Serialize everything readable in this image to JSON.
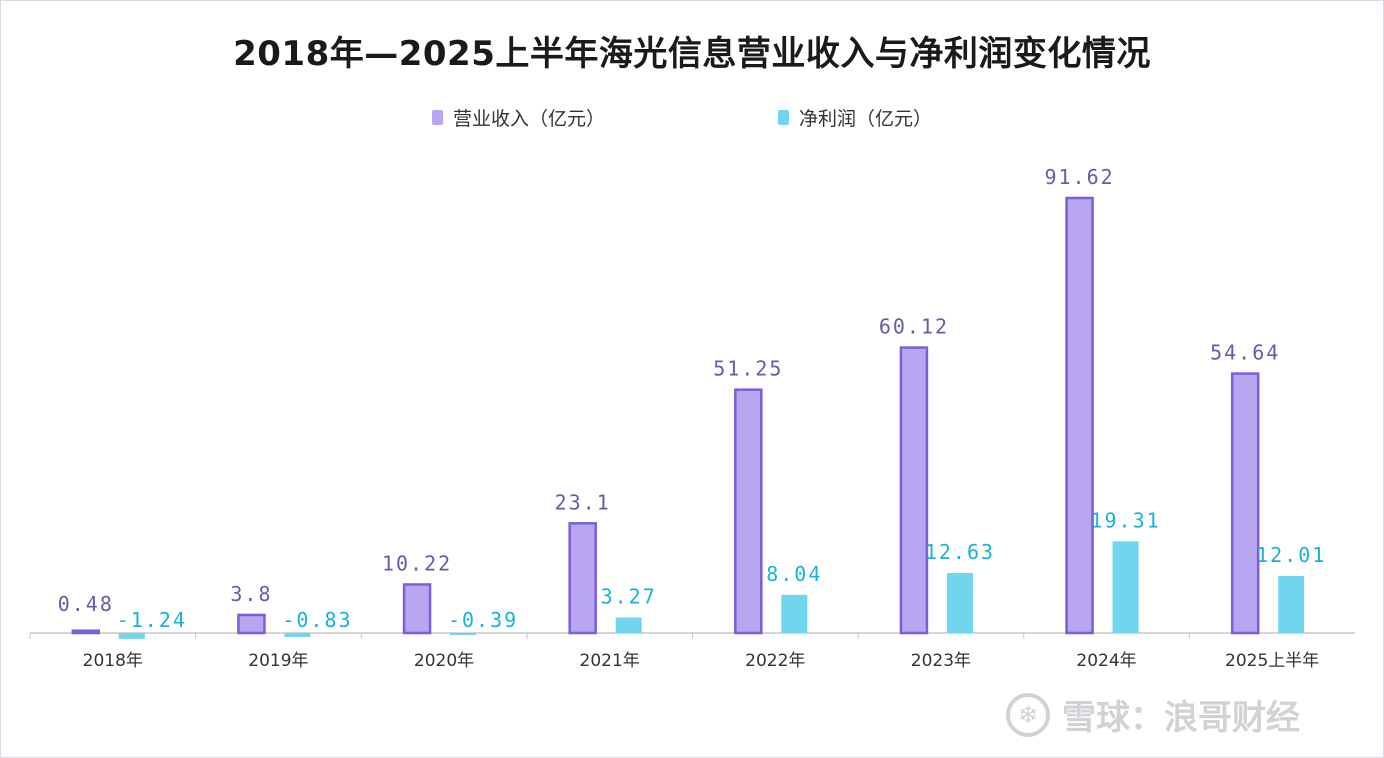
{
  "chart_data": {
    "type": "bar",
    "title": "2018年—2025上半年海光信息营业收入与净利润变化情况",
    "categories": [
      "2018年",
      "2019年",
      "2020年",
      "2021年",
      "2022年",
      "2023年",
      "2024年",
      "2025上半年"
    ],
    "series": [
      {
        "name": "营业收入（亿元）",
        "color": "#b9a6f0",
        "values": [
          0.48,
          3.8,
          10.22,
          23.1,
          51.25,
          60.12,
          91.62,
          54.64
        ],
        "labels": [
          "0.48",
          "3.8",
          "10.22",
          "23.1",
          "51.25",
          "60.12",
          "91.62",
          "54.64"
        ],
        "label_color": "#6a5aa8"
      },
      {
        "name": "净利润（亿元）",
        "color": "#6fd6ee",
        "values": [
          -1.24,
          -0.83,
          -0.39,
          3.27,
          8.04,
          12.63,
          19.31,
          12.01
        ],
        "labels": [
          "-1.24",
          "-0.83",
          "-0.39",
          "3.27",
          "8.04",
          "12.63",
          "19.31",
          "12.01"
        ],
        "label_color": "#1ab3d6"
      }
    ],
    "grid": false,
    "legend_position": "top-center"
  },
  "watermark": {
    "logo_glyph": "❄",
    "text": "雪球：浪哥财经"
  }
}
